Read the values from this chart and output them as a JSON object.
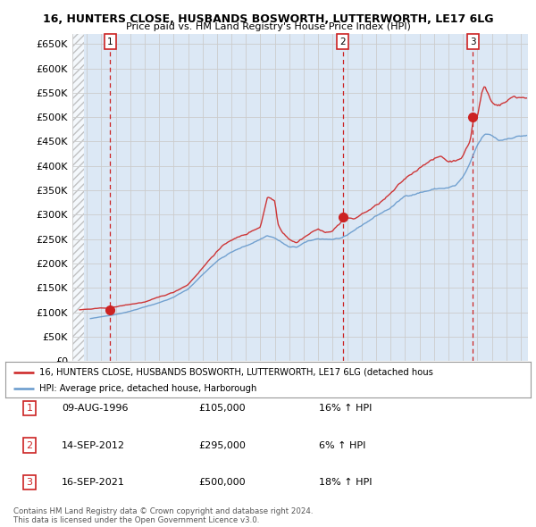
{
  "title_line1": "16, HUNTERS CLOSE, HUSBANDS BOSWORTH, LUTTERWORTH, LE17 6LG",
  "title_line2": "Price paid vs. HM Land Registry's House Price Index (HPI)",
  "ytick_values": [
    0,
    50000,
    100000,
    150000,
    200000,
    250000,
    300000,
    350000,
    400000,
    450000,
    500000,
    550000,
    600000,
    650000
  ],
  "xlim_start": 1994.0,
  "xlim_end": 2025.5,
  "ylim_min": 0,
  "ylim_max": 670000,
  "sale_dates": [
    1996.6,
    2012.7,
    2021.7
  ],
  "sale_prices": [
    105000,
    295000,
    500000
  ],
  "sale_labels": [
    "1",
    "2",
    "3"
  ],
  "hpi_line_color": "#6699cc",
  "price_line_color": "#cc2222",
  "sale_marker_color": "#cc2222",
  "vline_color": "#cc2222",
  "grid_color": "#cccccc",
  "bg_color": "#dce8f5",
  "hatch_color": "#c8d8e8",
  "legend_label_price": "16, HUNTERS CLOSE, HUSBANDS BOSWORTH, LUTTERWORTH, LE17 6LG (detached hous",
  "legend_label_hpi": "HPI: Average price, detached house, Harborough",
  "table_entries": [
    {
      "num": "1",
      "date": "09-AUG-1996",
      "price": "£105,000",
      "change": "16% ↑ HPI"
    },
    {
      "num": "2",
      "date": "14-SEP-2012",
      "price": "£295,000",
      "change": "6% ↑ HPI"
    },
    {
      "num": "3",
      "date": "16-SEP-2021",
      "price": "£500,000",
      "change": "18% ↑ HPI"
    }
  ],
  "footer_text": "Contains HM Land Registry data © Crown copyright and database right 2024.\nThis data is licensed under the Open Government Licence v3.0.",
  "hpi_x_start": 1995.25,
  "price_x_start": 1994.5
}
